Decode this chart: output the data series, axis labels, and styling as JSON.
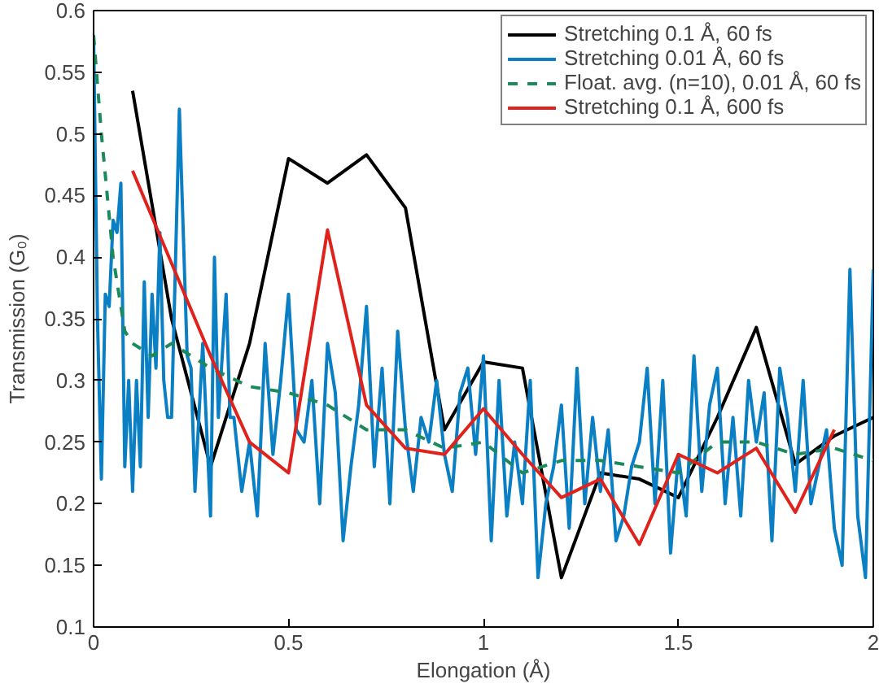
{
  "chart_data": {
    "type": "line",
    "xlabel": "Elongation (Å)",
    "ylabel": "Transmission (G₀)",
    "xlim": [
      0,
      2
    ],
    "ylim": [
      0.1,
      0.6
    ],
    "xticks": [
      0,
      0.5,
      1,
      1.5,
      2
    ],
    "yticks": [
      0.1,
      0.15,
      0.2,
      0.25,
      0.3,
      0.35,
      0.4,
      0.45,
      0.5,
      0.55,
      0.6
    ],
    "grid": false,
    "legend": "top right",
    "line_style": "solid",
    "marker": "none",
    "series": [
      {
        "name": "Stretching 0.1 Å, 60 fs",
        "color": "#000000",
        "x": [
          0.1,
          0.2,
          0.3,
          0.4,
          0.5,
          0.6,
          0.7,
          0.8,
          0.9,
          1.0,
          1.1,
          1.2,
          1.3,
          1.4,
          1.5,
          1.6,
          1.7,
          1.8,
          1.9,
          2.0
        ],
        "values": [
          0.535,
          0.35,
          0.23,
          0.33,
          0.48,
          0.46,
          0.483,
          0.44,
          0.26,
          0.315,
          0.31,
          0.14,
          0.225,
          0.22,
          0.205,
          0.27,
          0.343,
          0.232,
          0.255,
          0.27
        ]
      },
      {
        "name": "Stretching 0.01 Å, 60 fs",
        "color": "#0a7fc4",
        "x": [
          0,
          0.01,
          0.02,
          0.03,
          0.04,
          0.05,
          0.06,
          0.07,
          0.08,
          0.09,
          0.1,
          0.11,
          0.12,
          0.13,
          0.14,
          0.15,
          0.16,
          0.17,
          0.18,
          0.19,
          0.2,
          0.22,
          0.24,
          0.25,
          0.26,
          0.28,
          0.3,
          0.31,
          0.32,
          0.34,
          0.35,
          0.36,
          0.38,
          0.4,
          0.42,
          0.44,
          0.46,
          0.48,
          0.5,
          0.52,
          0.54,
          0.56,
          0.58,
          0.6,
          0.62,
          0.64,
          0.66,
          0.68,
          0.7,
          0.72,
          0.74,
          0.76,
          0.78,
          0.8,
          0.82,
          0.84,
          0.86,
          0.88,
          0.9,
          0.92,
          0.94,
          0.96,
          0.98,
          1.0,
          1.02,
          1.04,
          1.06,
          1.08,
          1.1,
          1.12,
          1.14,
          1.16,
          1.18,
          1.2,
          1.22,
          1.24,
          1.26,
          1.28,
          1.3,
          1.32,
          1.34,
          1.36,
          1.38,
          1.4,
          1.42,
          1.44,
          1.46,
          1.48,
          1.5,
          1.52,
          1.54,
          1.56,
          1.58,
          1.6,
          1.62,
          1.64,
          1.66,
          1.68,
          1.7,
          1.72,
          1.74,
          1.76,
          1.78,
          1.8,
          1.82,
          1.84,
          1.86,
          1.88,
          1.9,
          1.92,
          1.94,
          1.96,
          1.98,
          2.0
        ],
        "values": [
          0.58,
          0.35,
          0.22,
          0.37,
          0.36,
          0.43,
          0.42,
          0.46,
          0.23,
          0.3,
          0.21,
          0.3,
          0.23,
          0.38,
          0.27,
          0.37,
          0.31,
          0.42,
          0.3,
          0.27,
          0.27,
          0.52,
          0.32,
          0.31,
          0.21,
          0.33,
          0.19,
          0.4,
          0.27,
          0.37,
          0.27,
          0.27,
          0.21,
          0.25,
          0.19,
          0.33,
          0.24,
          0.3,
          0.37,
          0.26,
          0.25,
          0.3,
          0.2,
          0.33,
          0.29,
          0.17,
          0.23,
          0.28,
          0.36,
          0.23,
          0.31,
          0.2,
          0.34,
          0.26,
          0.21,
          0.27,
          0.25,
          0.3,
          0.24,
          0.21,
          0.29,
          0.31,
          0.24,
          0.32,
          0.17,
          0.3,
          0.19,
          0.25,
          0.2,
          0.3,
          0.14,
          0.2,
          0.23,
          0.28,
          0.18,
          0.31,
          0.2,
          0.27,
          0.21,
          0.26,
          0.17,
          0.19,
          0.23,
          0.25,
          0.31,
          0.2,
          0.3,
          0.16,
          0.24,
          0.19,
          0.32,
          0.21,
          0.28,
          0.31,
          0.2,
          0.27,
          0.19,
          0.3,
          0.25,
          0.29,
          0.17,
          0.31,
          0.27,
          0.21,
          0.3,
          0.2,
          0.23,
          0.26,
          0.18,
          0.15,
          0.39,
          0.19,
          0.14,
          0.39
        ]
      },
      {
        "name": "Float. avg. (n=10), 0.01 Å, 60 fs",
        "color": "#1b8a5a",
        "line_style": "dashed",
        "x": [
          0,
          0.02,
          0.05,
          0.08,
          0.1,
          0.15,
          0.2,
          0.3,
          0.4,
          0.5,
          0.6,
          0.7,
          0.8,
          0.9,
          1.0,
          1.1,
          1.2,
          1.3,
          1.4,
          1.5,
          1.6,
          1.7,
          1.8,
          1.9,
          2.0
        ],
        "values": [
          0.58,
          0.5,
          0.4,
          0.34,
          0.33,
          0.32,
          0.33,
          0.31,
          0.295,
          0.29,
          0.28,
          0.26,
          0.26,
          0.245,
          0.25,
          0.225,
          0.235,
          0.235,
          0.23,
          0.225,
          0.25,
          0.25,
          0.24,
          0.245,
          0.235
        ]
      },
      {
        "name": "Stretching 0.1 Å, 600 fs",
        "color": "#e0221d",
        "x": [
          0.1,
          0.2,
          0.3,
          0.4,
          0.5,
          0.6,
          0.7,
          0.8,
          0.9,
          1.0,
          1.1,
          1.2,
          1.3,
          1.4,
          1.5,
          1.6,
          1.7,
          1.8,
          1.9
        ],
        "values": [
          0.47,
          0.395,
          0.32,
          0.25,
          0.225,
          0.422,
          0.28,
          0.245,
          0.24,
          0.277,
          0.24,
          0.205,
          0.22,
          0.167,
          0.24,
          0.225,
          0.245,
          0.193,
          0.26
        ]
      }
    ]
  }
}
